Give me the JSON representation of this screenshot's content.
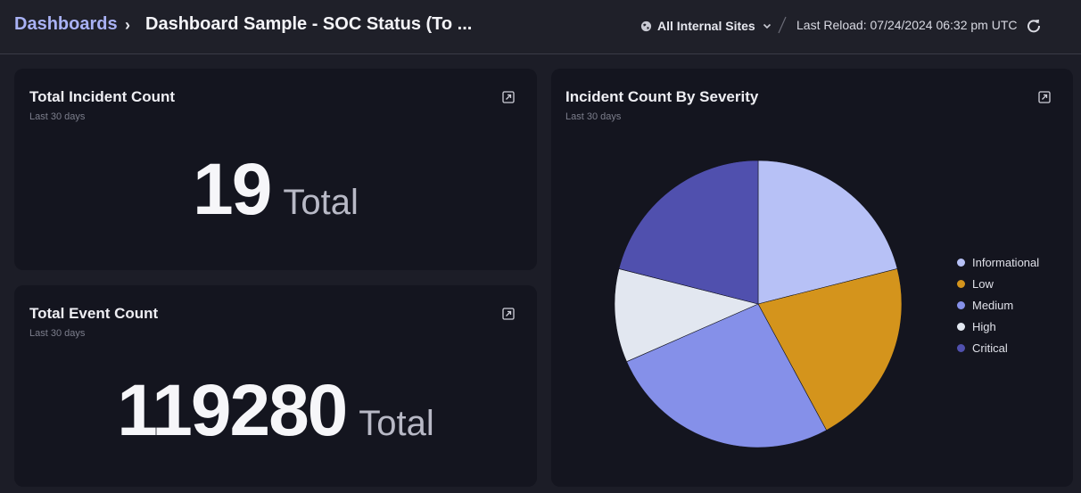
{
  "header": {
    "breadcrumb_root": "Dashboards",
    "breadcrumb_separator": "›",
    "title": "Dashboard Sample - SOC Status (To ...",
    "site_selector": "All Internal Sites",
    "last_reload": "Last Reload: 07/24/2024 06:32 pm UTC"
  },
  "cards": {
    "incident": {
      "title": "Total Incident Count",
      "subtitle": "Last 30 days",
      "value": "19",
      "unit": "Total"
    },
    "event": {
      "title": "Total Event Count",
      "subtitle": "Last 30 days",
      "value": "119280",
      "unit": "Total"
    },
    "severity": {
      "title": "Incident Count By Severity",
      "subtitle": "Last 30 days"
    }
  },
  "icons": {
    "site": "globe-icon",
    "dropdown": "chevron-down-icon",
    "refresh": "refresh-icon",
    "expand": "expand-icon"
  },
  "chart_data": {
    "type": "pie",
    "title": "Incident Count By Severity",
    "categories": [
      "Informational",
      "Low",
      "Medium",
      "High",
      "Critical"
    ],
    "values": [
      4,
      4,
      5,
      2,
      4
    ],
    "colors": [
      "#b7c1f6",
      "#d4941c",
      "#8590e9",
      "#e2e7f0",
      "#5050ae"
    ],
    "legend": "right",
    "start_angle_deg": -90
  }
}
